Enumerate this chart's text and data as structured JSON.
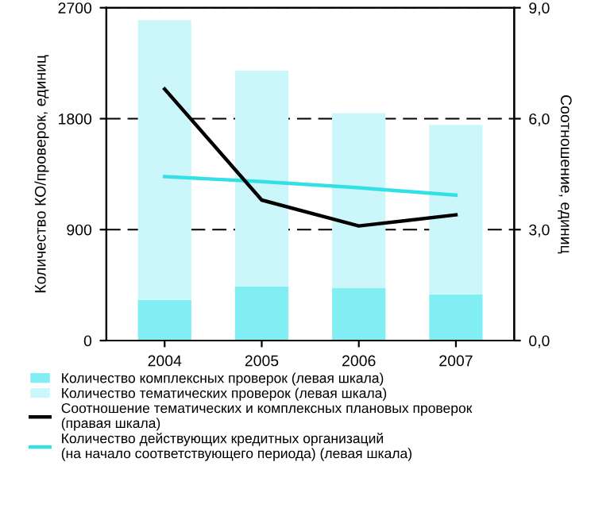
{
  "chart_data": {
    "type": "bar",
    "stacked": true,
    "categories": [
      "2004",
      "2005",
      "2006",
      "2007"
    ],
    "ylabel": "Количество КО/проверок, единиц",
    "y2label": "Соотношение, единиц",
    "ylim": [
      0,
      2700
    ],
    "yticks": [
      0,
      900,
      1800,
      2700
    ],
    "y2lim": [
      0,
      9
    ],
    "y2ticks": [
      {
        "value": 0,
        "label": "0,0"
      },
      {
        "value": 3,
        "label": "3,0"
      },
      {
        "value": 6,
        "label": "6,0"
      },
      {
        "value": 9,
        "label": "9,0"
      }
    ],
    "grid": "y",
    "legend": "bottom",
    "series": [
      {
        "name": "Количество комплексных проверок (левая шкала)",
        "color": "#80eef2",
        "values": [
          330,
          440,
          425,
          375
        ]
      },
      {
        "name": "Количество тематических проверок (левая шкала)",
        "color": "#ccf7fa",
        "values": [
          2270,
          1750,
          1420,
          1375
        ]
      },
      {
        "name": "Соотношение тематических и комплексных плановых проверок\n(правая шкала)",
        "type": "line",
        "axis": "y2",
        "color": "#000000",
        "values": [
          6.8,
          3.8,
          3.1,
          3.4
        ]
      },
      {
        "name": "Количество действующих кредитных организаций\n(на начало соответствующего периода) (левая шкала)",
        "type": "line",
        "color": "#33e0e6",
        "values": [
          1330,
          1290,
          1240,
          1180
        ]
      }
    ]
  }
}
